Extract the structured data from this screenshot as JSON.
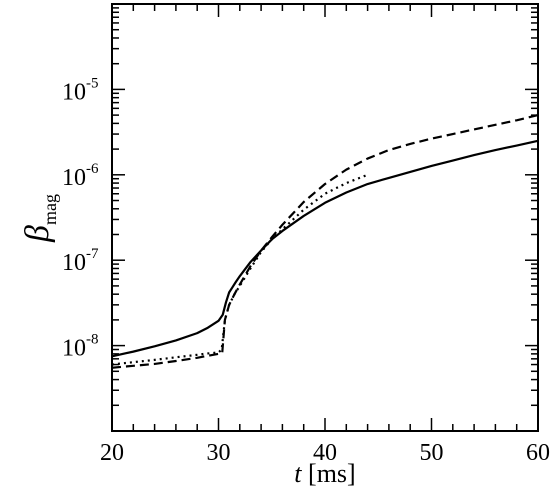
{
  "chart_data": {
    "type": "line",
    "xlabel": {
      "var": "t",
      "unit": " [ms]"
    },
    "ylabel": {
      "var": "β",
      "sub": "mag"
    },
    "xlim": [
      20,
      60
    ],
    "ylim": [
      1e-09,
      0.0001
    ],
    "yscale": "log",
    "grid": false,
    "x_ticks": [
      20,
      30,
      40,
      50,
      60
    ],
    "x_tick_labels": [
      "20",
      "30",
      "40",
      "50",
      "60"
    ],
    "y_ticks": [
      1e-08,
      1e-07,
      1e-06,
      1e-05
    ],
    "y_tick_labels": [
      {
        "base": "10",
        "exp": "-8"
      },
      {
        "base": "10",
        "exp": "-7"
      },
      {
        "base": "10",
        "exp": "-6"
      },
      {
        "base": "10",
        "exp": "-5"
      }
    ],
    "series": [
      {
        "style": "solid",
        "x": [
          20,
          22,
          24,
          26,
          28,
          29,
          30,
          30.4,
          30.7,
          31,
          31.3,
          31.6,
          32,
          33,
          34,
          35,
          36,
          38,
          40,
          42,
          44,
          46,
          48,
          50,
          52,
          54,
          56,
          58,
          60
        ],
        "y": [
          7.5e-09,
          8.5e-09,
          9.8e-09,
          1.15e-08,
          1.4e-08,
          1.62e-08,
          1.95e-08,
          2.3e-08,
          3.2e-08,
          4.2e-08,
          4.8e-08,
          5.5e-08,
          6.5e-08,
          9.5e-08,
          1.3e-07,
          1.75e-07,
          2.2e-07,
          3.3e-07,
          4.7e-07,
          6.2e-07,
          7.8e-07,
          9.2e-07,
          1.08e-06,
          1.27e-06,
          1.47e-06,
          1.7e-06,
          1.95e-06,
          2.2e-06,
          2.5e-06
        ]
      },
      {
        "style": "dashed",
        "x": [
          20,
          22,
          24,
          26,
          28,
          29,
          30,
          30.35,
          30.6,
          31,
          31.5,
          32,
          33,
          34,
          35,
          36,
          38,
          40,
          42,
          44,
          46,
          48,
          50,
          52,
          54,
          56,
          58,
          60
        ],
        "y": [
          5.5e-09,
          5.8e-09,
          6.1e-09,
          6.6e-09,
          7.2e-09,
          7.6e-09,
          8e-09,
          8.2e-09,
          2e-08,
          3e-08,
          4e-08,
          5.2e-08,
          8.5e-08,
          1.3e-07,
          1.85e-07,
          2.6e-07,
          4.8e-07,
          7.8e-07,
          1.15e-06,
          1.55e-06,
          1.95e-06,
          2.3e-06,
          2.65e-06,
          3e-06,
          3.4e-06,
          3.85e-06,
          4.35e-06,
          5e-06
        ]
      },
      {
        "style": "dotted",
        "x": [
          20,
          22,
          24,
          26,
          28,
          29,
          30,
          30.3,
          30.6,
          31,
          31.5,
          32,
          33,
          34,
          35,
          36,
          38,
          40,
          42,
          44
        ],
        "y": [
          6e-09,
          6.4e-09,
          6.8e-09,
          7.3e-09,
          7.8e-09,
          8.1e-09,
          8.3e-09,
          9e-09,
          2e-08,
          3e-08,
          4e-08,
          5e-08,
          8e-08,
          1.25e-07,
          1.75e-07,
          2.3e-07,
          3.9e-07,
          6e-07,
          8e-07,
          1e-06
        ]
      }
    ]
  }
}
